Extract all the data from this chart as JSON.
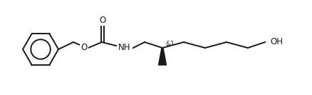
{
  "bg_color": "#ffffff",
  "line_color": "#1a1a1a",
  "line_width": 1.4,
  "font_size": 8.5,
  "label_NH": "NH",
  "label_O": "O",
  "label_OH": "OH",
  "label_stereo": "&1",
  "label_carbonyl_O": "O"
}
